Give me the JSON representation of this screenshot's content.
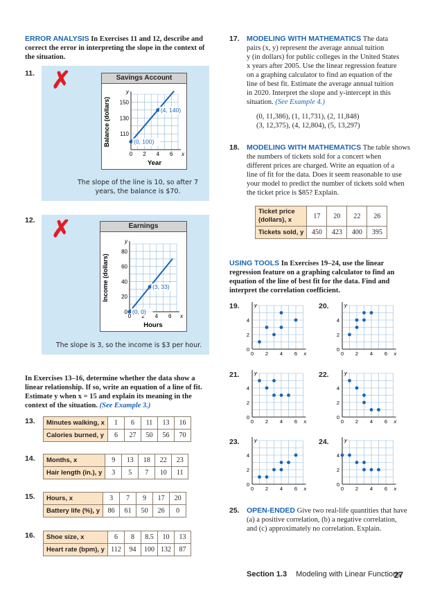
{
  "left": {
    "error_analysis": {
      "heading": "ERROR ANALYSIS",
      "text": "In Exercises 11 and 12, describe and correct the error in interpreting the slope in the context of the situation."
    },
    "ex11": {
      "number": "11.",
      "mark_icon": "red-x-icon",
      "graph_title": "Savings Account",
      "ylabel": "Balance (dollars)",
      "xlabel": "Year",
      "caption": "The slope of the line is 10, so after 7 years, the balance is $70."
    },
    "ex12": {
      "number": "12.",
      "mark_icon": "red-x-icon",
      "graph_title": "Earnings",
      "ylabel": "Income (dollars)",
      "xlabel": "Hours",
      "caption": "The slope is 3, so the income is $3 per hour."
    },
    "intro_13_16": {
      "text": "In Exercises 13–16, determine whether the data show a linear relationship. If so, write an equation of a line of fit. Estimate y when x = 15 and explain its meaning in the context of the situation.",
      "ref": "(See Example 3.)"
    },
    "tables": [
      {
        "number": "13.",
        "xlabel": "Minutes walking, x",
        "ylabel": "Calories burned, y",
        "x": [
          "1",
          "6",
          "11",
          "13",
          "16"
        ],
        "y": [
          "6",
          "27",
          "50",
          "56",
          "70"
        ]
      },
      {
        "number": "14.",
        "xlabel": "Months, x",
        "ylabel": "Hair length (in.), y",
        "x": [
          "9",
          "13",
          "18",
          "22",
          "23"
        ],
        "y": [
          "3",
          "5",
          "7",
          "10",
          "11"
        ]
      },
      {
        "number": "15.",
        "xlabel": "Hours, x",
        "ylabel": "Battery life (%), y",
        "x": [
          "3",
          "7",
          "9",
          "17",
          "20"
        ],
        "y": [
          "86",
          "61",
          "50",
          "26",
          "0"
        ]
      },
      {
        "number": "16.",
        "xlabel": "Shoe size, x",
        "ylabel": "Heart rate (bpm), y",
        "x": [
          "6",
          "8",
          "8.5",
          "10",
          "13"
        ],
        "y": [
          "112",
          "94",
          "100",
          "132",
          "87"
        ]
      }
    ]
  },
  "right": {
    "ex17": {
      "number": "17.",
      "heading": "MODELING WITH MATHEMATICS",
      "line1": "The data",
      "line2": "pairs (x, y) represent the average annual tuition",
      "line3": "y (in dollars) for public colleges in the United States",
      "line4": "x years after 2005. Use the linear regression feature",
      "line5": "on a graphing calculator to find an equation of the",
      "line6": "line of best fit. Estimate the average annual tuition",
      "line7": "in 2020. Interpret the slope and y-intercept in this",
      "line8": "situation.",
      "ref": "(See Example 4.)",
      "data1": "(0, 11,386), (1, 11,731), (2, 11,848)",
      "data2": "(3, 12,375), (4, 12,804), (5, 13,297)"
    },
    "ex18": {
      "number": "18.",
      "heading": "MODELING WITH MATHEMATICS",
      "line1": "The table shows",
      "line2": "the numbers of tickets sold for a concert when",
      "line3": "different prices are charged. Write an equation of a",
      "line4": "line of fit for the data. Does it seem reasonable to use",
      "line5": "your model to predict the number of tickets sold when",
      "line6": "the ticket price is $85? Explain.",
      "table": {
        "xlabel1": "Ticket price",
        "xlabel2": "(dollars), x",
        "ylabel": "Tickets sold, y",
        "x": [
          "17",
          "20",
          "22",
          "26"
        ],
        "y": [
          "450",
          "423",
          "400",
          "395"
        ]
      }
    },
    "using_tools": {
      "heading": "USING TOOLS",
      "line1": "In Exercises 19–24, use the linear",
      "line2": "regression feature on a graphing calculator to find an",
      "line3": "equation of the line of best fit for the data. Find and",
      "line4": "interpret the correlation coefficient."
    },
    "scatter_numbers": [
      "19.",
      "20.",
      "21.",
      "22.",
      "23.",
      "24."
    ],
    "ex25": {
      "number": "25.",
      "heading": "OPEN-ENDED",
      "line1": "Give two real-life quantities that have",
      "line2": "(a) a positive correlation, (b) a negative correlation,",
      "line3": "and (c) approximately no correlation. Explain."
    }
  },
  "footer": {
    "section": "Section 1.3",
    "title": "Modeling with Linear Functions",
    "page": "27"
  },
  "chart_data": [
    {
      "id": "ex11",
      "type": "line",
      "title": "Savings Account",
      "xlabel": "Year",
      "ylabel": "Balance (dollars)",
      "xlim": [
        0,
        7
      ],
      "ylim": [
        90,
        160
      ],
      "xticks": [
        "0",
        "2",
        "4",
        "6"
      ],
      "yticks": [
        "110",
        "130",
        "150"
      ],
      "points": [
        {
          "x": 0,
          "y": 100,
          "label": "(0, 100)"
        },
        {
          "x": 4,
          "y": 140,
          "label": "(4, 140)"
        }
      ]
    },
    {
      "id": "ex12",
      "type": "line",
      "title": "Earnings",
      "xlabel": "Hours",
      "ylabel": "Income (dollars)",
      "xlim": [
        0,
        7
      ],
      "ylim": [
        0,
        90
      ],
      "xticks": [
        "0",
        "2",
        "4",
        "6"
      ],
      "yticks": [
        "0",
        "20",
        "40",
        "60",
        "80"
      ],
      "points": [
        {
          "x": 0,
          "y": 0,
          "label": "(0, 0)"
        },
        {
          "x": 3,
          "y": 33,
          "label": "(3, 33)"
        }
      ]
    },
    {
      "id": "ex19",
      "type": "scatter",
      "x": [
        1,
        2,
        3,
        4,
        4,
        6
      ],
      "y": [
        1,
        3,
        2,
        5,
        3,
        4
      ]
    },
    {
      "id": "ex20",
      "type": "scatter",
      "x": [
        1,
        2,
        2,
        3,
        3,
        4
      ],
      "y": [
        2,
        3,
        4,
        4,
        5,
        5
      ]
    },
    {
      "id": "ex21",
      "type": "scatter",
      "x": [
        1,
        2,
        3,
        3,
        4,
        5
      ],
      "y": [
        5,
        4,
        5,
        3,
        3,
        3
      ]
    },
    {
      "id": "ex22",
      "type": "scatter",
      "x": [
        1,
        2,
        3,
        3,
        4,
        5
      ],
      "y": [
        5,
        4,
        3,
        2,
        1,
        1
      ]
    },
    {
      "id": "ex23",
      "type": "scatter",
      "x": [
        1,
        2,
        3,
        4,
        4,
        5,
        6
      ],
      "y": [
        1,
        1,
        2,
        2,
        3,
        3,
        4
      ]
    },
    {
      "id": "ex24",
      "type": "scatter",
      "x": [
        0,
        1,
        2,
        3,
        3,
        4,
        5
      ],
      "y": [
        4,
        4,
        3,
        3,
        2,
        2,
        2
      ]
    }
  ]
}
